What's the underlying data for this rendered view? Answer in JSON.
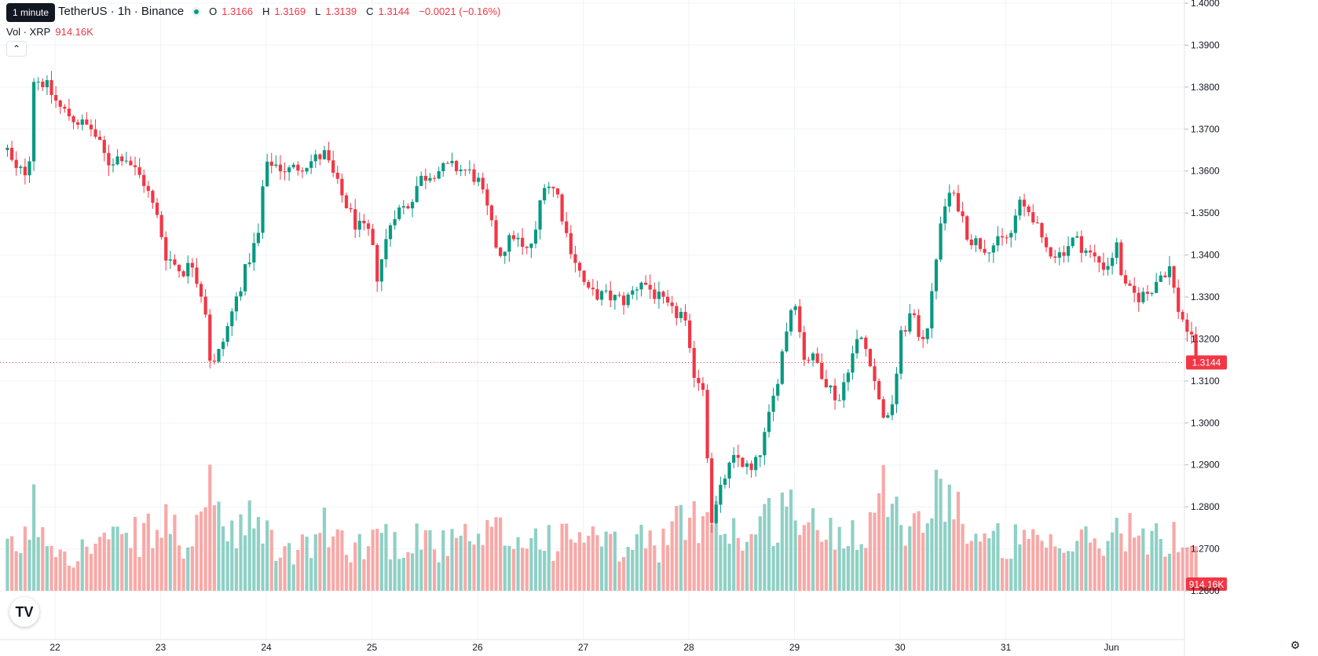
{
  "header": {
    "symbol": "TetherUS · 1h · Binance",
    "tooltip": "1 minute",
    "o_label": "O",
    "o_value": "1.3166",
    "h_label": "H",
    "h_value": "1.3169",
    "l_label": "L",
    "l_value": "1.3139",
    "c_label": "C",
    "c_value": "1.3144",
    "change": "−0.0021 (−0.16%)"
  },
  "volume": {
    "label": "Vol · XRP",
    "value": "914.16K"
  },
  "icons": {
    "logo": "tradingview-logo-icon",
    "collapse": "chevron-up-icon",
    "settings": "gear-icon"
  },
  "colors": {
    "up": "#089981",
    "down": "#f23645",
    "up_vol": "#8fd0c5",
    "down_vol": "#f7a9a7",
    "grid": "#f0f3fa",
    "text": "#131722"
  },
  "chart_data": {
    "type": "candlestick",
    "interval": "1h",
    "last_price": 1.3144,
    "last_price_label": "1.3144",
    "volume_label": "914.16K",
    "ylim": [
      1.26,
      1.4
    ],
    "y_ticks": [
      "1.4000",
      "1.3900",
      "1.3800",
      "1.3700",
      "1.3600",
      "1.3500",
      "1.3400",
      "1.3300",
      "1.3200",
      "1.3100",
      "1.3000",
      "1.2900",
      "1.2800",
      "1.2700",
      "1.2600"
    ],
    "x_ticks": [
      {
        "label": "22",
        "day": 22
      },
      {
        "label": "23",
        "day": 23
      },
      {
        "label": "24",
        "day": 24
      },
      {
        "label": "25",
        "day": 25
      },
      {
        "label": "26",
        "day": 26
      },
      {
        "label": "27",
        "day": 27
      },
      {
        "label": "28",
        "day": 28
      },
      {
        "label": "29",
        "day": 29
      },
      {
        "label": "30",
        "day": 30
      },
      {
        "label": "31",
        "day": 31
      },
      {
        "label": "Jun",
        "day": 32
      }
    ],
    "start_day": 21.55,
    "anchors": [
      [
        21.55,
        1.365,
        0.25
      ],
      [
        21.62,
        1.36,
        0.3
      ],
      [
        21.75,
        1.36,
        0.35
      ],
      [
        21.8,
        1.382,
        0.55
      ],
      [
        21.9,
        1.381,
        0.4
      ],
      [
        22.05,
        1.375,
        0.3
      ],
      [
        22.2,
        1.372,
        0.25
      ],
      [
        22.35,
        1.37,
        0.3
      ],
      [
        22.5,
        1.362,
        0.35
      ],
      [
        22.65,
        1.364,
        0.3
      ],
      [
        22.85,
        1.357,
        0.4
      ],
      [
        22.98,
        1.348,
        0.35
      ],
      [
        23.05,
        1.34,
        0.5
      ],
      [
        23.2,
        1.336,
        0.3
      ],
      [
        23.3,
        1.338,
        0.35
      ],
      [
        23.42,
        1.328,
        0.4
      ],
      [
        23.48,
        1.312,
        0.95
      ],
      [
        23.6,
        1.32,
        0.35
      ],
      [
        23.72,
        1.33,
        0.35
      ],
      [
        23.85,
        1.34,
        0.45
      ],
      [
        23.93,
        1.345,
        0.4
      ],
      [
        23.98,
        1.36,
        0.5
      ],
      [
        24.05,
        1.362,
        0.3
      ],
      [
        24.2,
        1.36,
        0.25
      ],
      [
        24.4,
        1.362,
        0.3
      ],
      [
        24.55,
        1.364,
        0.4
      ],
      [
        24.7,
        1.355,
        0.35
      ],
      [
        24.85,
        1.347,
        0.3
      ],
      [
        24.98,
        1.345,
        0.3
      ],
      [
        25.05,
        1.335,
        0.45
      ],
      [
        25.2,
        1.35,
        0.3
      ],
      [
        25.35,
        1.352,
        0.35
      ],
      [
        25.45,
        1.358,
        0.4
      ],
      [
        25.6,
        1.36,
        0.3
      ],
      [
        25.75,
        1.361,
        0.3
      ],
      [
        25.9,
        1.36,
        0.35
      ],
      [
        26.0,
        1.358,
        0.3
      ],
      [
        26.1,
        1.35,
        0.35
      ],
      [
        26.2,
        1.34,
        0.4
      ],
      [
        26.35,
        1.345,
        0.3
      ],
      [
        26.45,
        1.34,
        0.35
      ],
      [
        26.55,
        1.345,
        0.35
      ],
      [
        26.62,
        1.358,
        0.4
      ],
      [
        26.75,
        1.355,
        0.3
      ],
      [
        26.85,
        1.344,
        0.35
      ],
      [
        26.98,
        1.335,
        0.4
      ],
      [
        27.05,
        1.331,
        0.35
      ],
      [
        27.25,
        1.33,
        0.3
      ],
      [
        27.4,
        1.329,
        0.25
      ],
      [
        27.55,
        1.334,
        0.35
      ],
      [
        27.7,
        1.33,
        0.3
      ],
      [
        27.85,
        1.326,
        0.4
      ],
      [
        27.95,
        1.326,
        0.45
      ],
      [
        28.0,
        1.317,
        0.5
      ],
      [
        28.05,
        1.312,
        0.45
      ],
      [
        28.15,
        1.308,
        0.55
      ],
      [
        28.18,
        1.29,
        0.6
      ],
      [
        28.22,
        1.276,
        0.7
      ],
      [
        28.28,
        1.282,
        0.45
      ],
      [
        28.35,
        1.288,
        0.4
      ],
      [
        28.45,
        1.292,
        0.4
      ],
      [
        28.6,
        1.288,
        0.35
      ],
      [
        28.7,
        1.295,
        0.45
      ],
      [
        28.82,
        1.308,
        0.5
      ],
      [
        28.92,
        1.322,
        0.55
      ],
      [
        29.0,
        1.331,
        0.6
      ],
      [
        29.08,
        1.316,
        0.45
      ],
      [
        29.2,
        1.315,
        0.4
      ],
      [
        29.3,
        1.31,
        0.4
      ],
      [
        29.42,
        1.305,
        0.4
      ],
      [
        29.5,
        1.313,
        0.4
      ],
      [
        29.62,
        1.321,
        0.45
      ],
      [
        29.72,
        1.315,
        0.5
      ],
      [
        29.8,
        1.305,
        0.55
      ],
      [
        29.88,
        1.3,
        0.8
      ],
      [
        29.95,
        1.308,
        0.75
      ],
      [
        30.0,
        1.32,
        0.55
      ],
      [
        30.1,
        1.326,
        0.4
      ],
      [
        30.2,
        1.32,
        0.5
      ],
      [
        30.28,
        1.325,
        0.55
      ],
      [
        30.35,
        1.342,
        0.6
      ],
      [
        30.45,
        1.355,
        0.8
      ],
      [
        30.55,
        1.352,
        0.55
      ],
      [
        30.65,
        1.344,
        0.4
      ],
      [
        30.8,
        1.342,
        0.3
      ],
      [
        30.95,
        1.343,
        0.35
      ],
      [
        31.05,
        1.345,
        0.3
      ],
      [
        31.12,
        1.352,
        0.35
      ],
      [
        31.25,
        1.35,
        0.3
      ],
      [
        31.35,
        1.342,
        0.3
      ],
      [
        31.5,
        1.34,
        0.25
      ],
      [
        31.65,
        1.344,
        0.3
      ],
      [
        31.8,
        1.34,
        0.35
      ],
      [
        31.95,
        1.337,
        0.3
      ],
      [
        32.05,
        1.342,
        0.4
      ],
      [
        32.12,
        1.332,
        0.45
      ],
      [
        32.25,
        1.33,
        0.35
      ],
      [
        32.35,
        1.331,
        0.3
      ],
      [
        32.45,
        1.335,
        0.35
      ],
      [
        32.55,
        1.337,
        0.3
      ],
      [
        32.62,
        1.328,
        0.4
      ],
      [
        32.72,
        1.322,
        0.35
      ],
      [
        32.78,
        1.318,
        0.3
      ],
      [
        32.82,
        1.315,
        0.28
      ]
    ]
  }
}
